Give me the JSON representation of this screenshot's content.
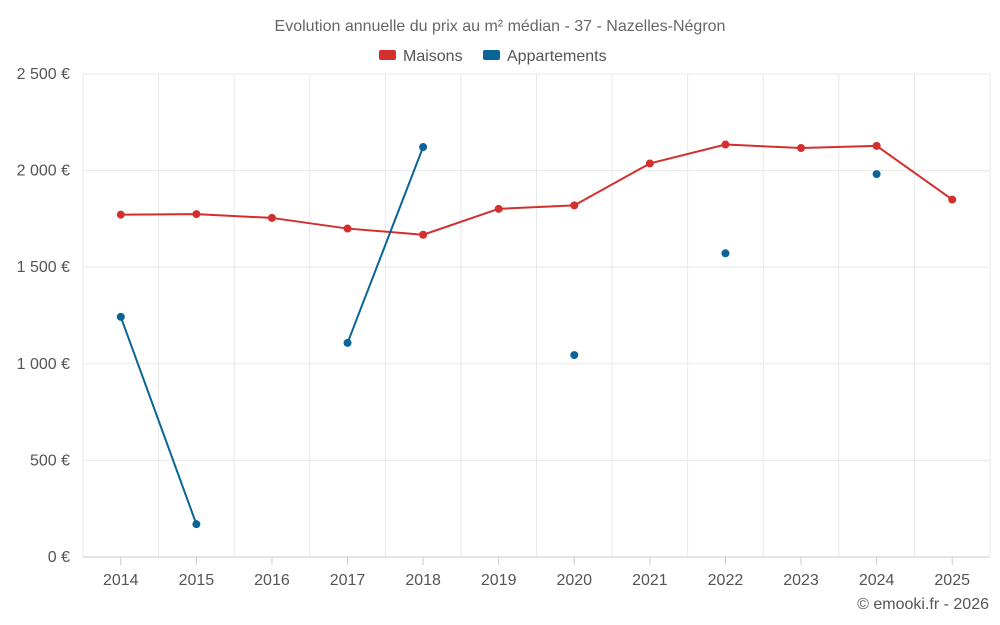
{
  "chart_data": {
    "type": "line",
    "title": "Evolution annuelle du prix au m² médian - 37 - Nazelles-Négron",
    "categories": [
      "2014",
      "2015",
      "2016",
      "2017",
      "2018",
      "2019",
      "2020",
      "2021",
      "2022",
      "2023",
      "2024",
      "2025"
    ],
    "series": [
      {
        "name": "Maisons",
        "color": "#d32f2f",
        "values": [
          1772,
          1775,
          1755,
          1700,
          1668,
          1802,
          1820,
          2037,
          2135,
          2117,
          2128,
          1850
        ]
      },
      {
        "name": "Appartements",
        "color": "#0a6496",
        "values": [
          1243,
          170,
          null,
          1108,
          2122,
          null,
          1045,
          null,
          1572,
          null,
          1982,
          null
        ]
      }
    ],
    "ylim": [
      0,
      2500
    ],
    "yticks": [
      0,
      500,
      1000,
      1500,
      2000,
      2500
    ],
    "ytick_labels": [
      "0 €",
      "500 €",
      "1 000 €",
      "1 500 €",
      "2 000 €",
      "2 500 €"
    ],
    "xlabel": "",
    "ylabel": "",
    "grid": true,
    "legend_position": "top-center"
  },
  "credit": "© emooki.fr - 2026"
}
